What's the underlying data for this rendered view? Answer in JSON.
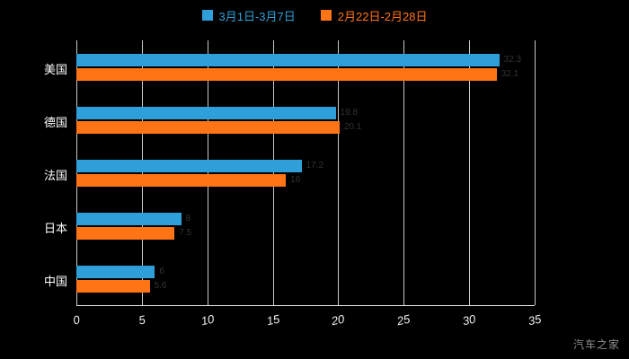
{
  "chart_data": {
    "type": "bar",
    "orientation": "horizontal",
    "title": "",
    "categories": [
      "美国",
      "德国",
      "法国",
      "日本",
      "中国"
    ],
    "series": [
      {
        "name": "3月1日-3月7日",
        "color": "#2E9FD8",
        "values": [
          32.3,
          19.8,
          17.2,
          8,
          6
        ]
      },
      {
        "name": "2月22日-2月28日",
        "color": "#FF7414",
        "values": [
          32.1,
          20.1,
          16,
          7.5,
          5.6
        ]
      }
    ],
    "xlim": [
      0,
      35
    ],
    "xticks": [
      0,
      5,
      10,
      15,
      20,
      25,
      30,
      35
    ],
    "grid": true,
    "legend_position": "top"
  },
  "watermark": "汽车之家",
  "colors": {
    "background": "#000000",
    "grid": "#c9c9c9",
    "axis": "#e8e8e8",
    "tick_text": "#f2f2f2",
    "category_text": "#ffffff",
    "value_label": "#333333",
    "watermark_text": "#8f8f8f"
  }
}
